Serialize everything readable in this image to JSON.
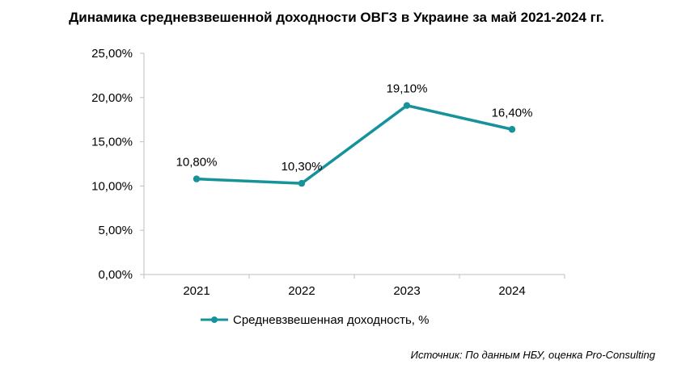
{
  "chart_data": {
    "type": "line",
    "title": "Динамика средневзвешенной доходности ОВГЗ в Украине за май 2021-2024 гг.",
    "categories": [
      "2021",
      "2022",
      "2023",
      "2024"
    ],
    "series": [
      {
        "name": "Средневзвешенная доходность, %",
        "values": [
          10.8,
          10.3,
          19.1,
          16.4
        ],
        "labels": [
          "10,80%",
          "10,30%",
          "19,10%",
          "16,40%"
        ],
        "color": "#16939a"
      }
    ],
    "ylim": [
      0,
      25
    ],
    "yticks": [
      0,
      5,
      10,
      15,
      20,
      25
    ],
    "ytick_labels": [
      "0,00%",
      "5,00%",
      "10,00%",
      "15,00%",
      "20,00%",
      "25,00%"
    ],
    "grid": false,
    "legend": "bottom",
    "source": "Источник: По данным НБУ, оценка Pro-Consulting"
  }
}
